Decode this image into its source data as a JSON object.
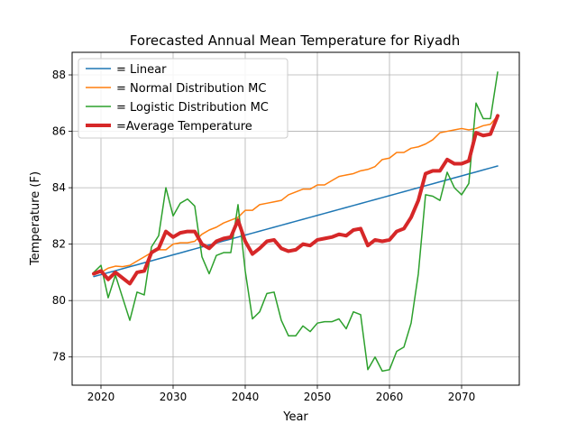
{
  "chart_data": {
    "type": "line",
    "title": "Forecasted Annual Mean Temperature for Riyadh",
    "xlabel": "Year",
    "ylabel": "Temperature (F)",
    "xlim": [
      2016,
      2078
    ],
    "ylim": [
      77.0,
      88.8
    ],
    "xticks": [
      2020,
      2030,
      2040,
      2050,
      2060,
      2070
    ],
    "yticks": [
      78,
      80,
      82,
      84,
      86,
      88
    ],
    "grid": true,
    "legend_position": "top-left",
    "x": [
      2019,
      2020,
      2021,
      2022,
      2023,
      2024,
      2025,
      2026,
      2027,
      2028,
      2029,
      2030,
      2031,
      2032,
      2033,
      2034,
      2035,
      2036,
      2037,
      2038,
      2039,
      2040,
      2041,
      2042,
      2043,
      2044,
      2045,
      2046,
      2047,
      2048,
      2049,
      2050,
      2051,
      2052,
      2053,
      2054,
      2055,
      2056,
      2057,
      2058,
      2059,
      2060,
      2061,
      2062,
      2063,
      2064,
      2065,
      2066,
      2067,
      2068,
      2069,
      2070,
      2071,
      2072,
      2073,
      2074,
      2075
    ],
    "series": [
      {
        "name": " = Linear",
        "color": "#1f77b4",
        "width": 1.5,
        "values": [
          80.85,
          80.92,
          80.99,
          81.06,
          81.13,
          81.2,
          81.27,
          81.34,
          81.41,
          81.48,
          81.55,
          81.62,
          81.69,
          81.76,
          81.83,
          81.9,
          81.97,
          82.04,
          82.11,
          82.18,
          82.25,
          82.32,
          82.39,
          82.46,
          82.53,
          82.6,
          82.67,
          82.74,
          82.81,
          82.88,
          82.95,
          83.02,
          83.09,
          83.16,
          83.23,
          83.3,
          83.37,
          83.44,
          83.51,
          83.58,
          83.65,
          83.72,
          83.79,
          83.86,
          83.93,
          84.0,
          84.07,
          84.14,
          84.21,
          84.28,
          84.35,
          84.42,
          84.49,
          84.56,
          84.63,
          84.7,
          84.77
        ]
      },
      {
        "name": " = Normal Distribution MC",
        "color": "#ff7f0e",
        "width": 1.5,
        "values": [
          80.95,
          81.0,
          81.15,
          81.22,
          81.2,
          81.25,
          81.4,
          81.55,
          81.7,
          81.8,
          81.8,
          82.0,
          82.05,
          82.05,
          82.1,
          82.35,
          82.5,
          82.6,
          82.75,
          82.85,
          82.95,
          83.2,
          83.2,
          83.4,
          83.45,
          83.5,
          83.55,
          83.75,
          83.85,
          83.95,
          83.95,
          84.1,
          84.1,
          84.25,
          84.4,
          84.45,
          84.5,
          84.6,
          84.65,
          84.75,
          85.0,
          85.05,
          85.25,
          85.25,
          85.4,
          85.45,
          85.55,
          85.7,
          85.95,
          86.0,
          86.05,
          86.1,
          86.05,
          86.1,
          86.2,
          86.25,
          86.55
        ]
      },
      {
        "name": " = Logistic Distribution MC",
        "color": "#2ca02c",
        "width": 1.5,
        "values": [
          81.0,
          81.25,
          80.1,
          80.9,
          80.1,
          79.3,
          80.3,
          80.2,
          81.9,
          82.3,
          84.0,
          83.0,
          83.45,
          83.6,
          83.35,
          81.55,
          80.95,
          81.6,
          81.7,
          81.7,
          83.4,
          81.05,
          79.35,
          79.6,
          80.25,
          80.3,
          79.3,
          78.75,
          78.75,
          79.1,
          78.9,
          79.2,
          79.25,
          79.25,
          79.35,
          79.0,
          79.6,
          79.5,
          77.55,
          78.0,
          77.5,
          77.55,
          78.2,
          78.35,
          79.2,
          80.95,
          83.75,
          83.7,
          83.55,
          84.55,
          84.0,
          83.75,
          84.15,
          87.0,
          86.45,
          86.45,
          88.1
        ]
      },
      {
        "name": "=Average Temperature",
        "color": "#d62728",
        "width": 4,
        "values": [
          80.95,
          81.05,
          80.75,
          81.0,
          80.8,
          80.6,
          81.0,
          81.05,
          81.7,
          81.85,
          82.45,
          82.25,
          82.4,
          82.45,
          82.45,
          82.0,
          81.85,
          82.1,
          82.2,
          82.25,
          82.85,
          82.1,
          81.65,
          81.85,
          82.1,
          82.15,
          81.85,
          81.75,
          81.8,
          82.0,
          81.95,
          82.15,
          82.2,
          82.25,
          82.35,
          82.3,
          82.5,
          82.55,
          81.95,
          82.15,
          82.1,
          82.15,
          82.45,
          82.55,
          82.95,
          83.55,
          84.5,
          84.6,
          84.6,
          85.0,
          84.85,
          84.85,
          84.95,
          85.95,
          85.85,
          85.9,
          86.55
        ]
      }
    ]
  }
}
